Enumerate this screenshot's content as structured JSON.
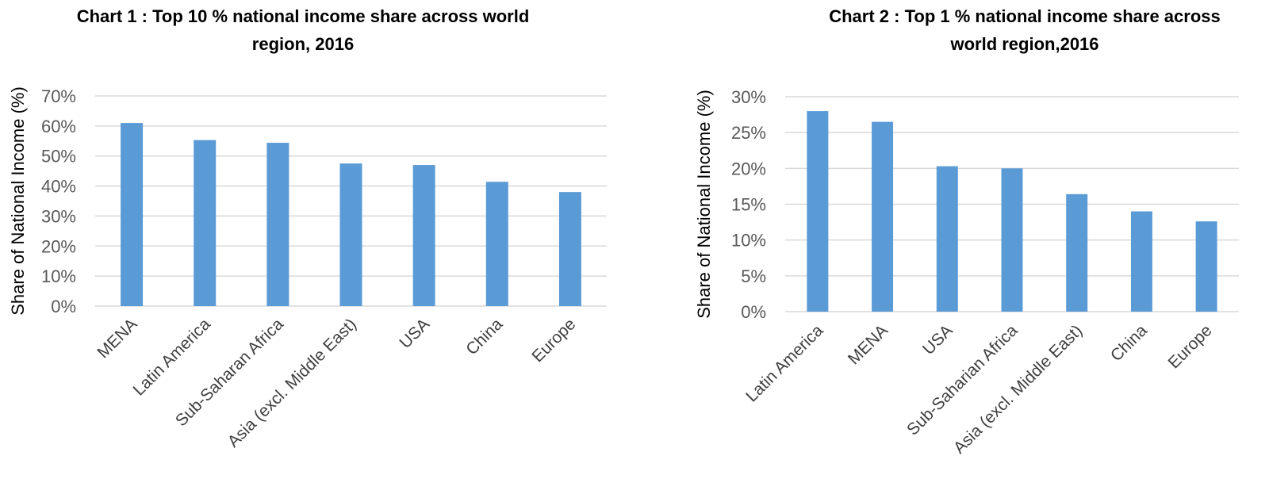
{
  "chart_data": [
    {
      "type": "bar",
      "title_lines": [
        "Chart 1 : Top 10 % national income share across world",
        "region, 2016"
      ],
      "categories": [
        "MENA",
        "Latin America",
        "Sub-Saharan Africa",
        "Asia (excl. Middle East)",
        "USA",
        "China",
        "Europe"
      ],
      "values": [
        61,
        55.3,
        54.4,
        47.5,
        47,
        41.4,
        38
      ],
      "ylabel": "Share of National Income (%)",
      "ylim": [
        0,
        70
      ],
      "ytick_step": 10,
      "yticks": [
        "0%",
        "10%",
        "20%",
        "30%",
        "40%",
        "50%",
        "60%",
        "70%"
      ],
      "bar_color": "#5b9bd5",
      "grid": true,
      "legend": "none"
    },
    {
      "type": "bar",
      "title_lines": [
        "Chart 2 : Top 1 % national income share across",
        "world region,2016"
      ],
      "categories": [
        "Latin America",
        "MENA",
        "USA",
        "Sub-Saharian Africa",
        "Asia (excl. Middle East)",
        "China",
        "Europe"
      ],
      "values": [
        28,
        26.5,
        20.3,
        20,
        16.4,
        14,
        12.6
      ],
      "ylabel": "Share of National Income (%)",
      "ylim": [
        0,
        30
      ],
      "ytick_step": 5,
      "yticks": [
        "0%",
        "5%",
        "10%",
        "15%",
        "20%",
        "25%",
        "30%"
      ],
      "bar_color": "#5b9bd5",
      "grid": true,
      "legend": "none"
    }
  ]
}
